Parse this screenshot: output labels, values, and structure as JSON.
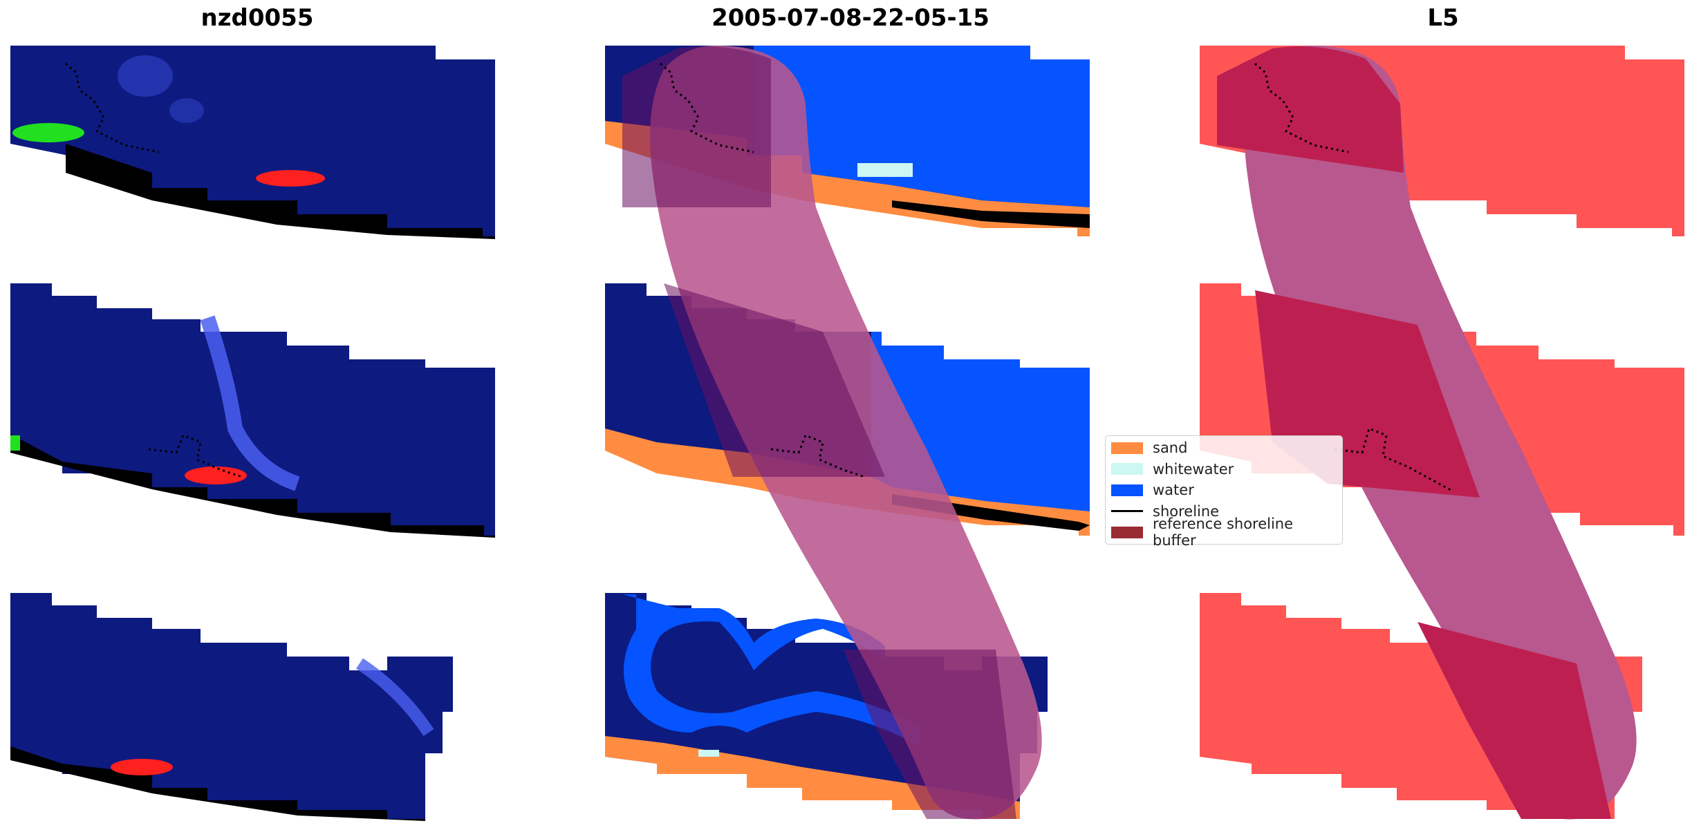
{
  "panels": [
    {
      "title": "nzd0055"
    },
    {
      "title": "2005-07-08-22-05-15"
    },
    {
      "title": "L5"
    }
  ],
  "legend": {
    "items": [
      {
        "label": "sand",
        "color": "#ff8c40",
        "kind": "patch"
      },
      {
        "label": "whitewater",
        "color": "#ccf7f2",
        "kind": "patch"
      },
      {
        "label": "water",
        "color": "#0554ff",
        "kind": "patch"
      },
      {
        "label": "shoreline",
        "color": "#000000",
        "kind": "line"
      },
      {
        "label": "reference shoreline buffer",
        "color": "#992b33",
        "kind": "patch"
      }
    ]
  },
  "colors": {
    "rgb_water": "#0d1a80",
    "rgb_water_light": "#2d3fc0",
    "rgb_bright_red": "#ff2020",
    "rgb_bright_green": "#20e020",
    "class_sand": "#ff8c40",
    "class_whitewater": "#ccf7f2",
    "class_water": "#0554ff",
    "buffer_overlay": "#b8588e",
    "buffer_dark": "#6a1160",
    "mask_red": "#ff5555",
    "mask_overlap": "#bd2050"
  }
}
